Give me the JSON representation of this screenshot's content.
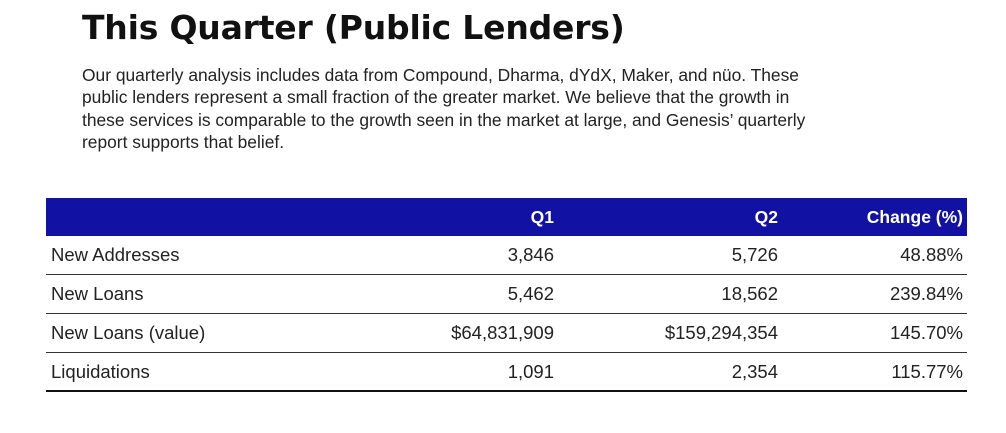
{
  "title": "This Quarter (Public Lenders)",
  "intro_lines": [
    "Our quarterly analysis includes data from Compound, Dharma, dYdX, Maker, and nüo. These",
    "public lenders represent a small fraction of the greater market. We believe that the growth in",
    "these services is comparable to the growth seen in the market at large, and Genesis’ quarterly",
    "report supports that belief."
  ],
  "table": {
    "header_color": "#1111a3",
    "columns": [
      "",
      "Q1",
      "Q2",
      "Change (%)"
    ],
    "rows": [
      {
        "label": "New Addresses",
        "q1": "3,846",
        "q2": "5,726",
        "change": "48.88%"
      },
      {
        "label": "New Loans",
        "q1": "5,462",
        "q2": "18,562",
        "change": "239.84%"
      },
      {
        "label": "New Loans (value)",
        "q1": "$64,831,909",
        "q2": "$159,294,354",
        "change": "145.70%"
      },
      {
        "label": "Liquidations",
        "q1": "1,091",
        "q2": "2,354",
        "change": "115.77%"
      }
    ]
  }
}
